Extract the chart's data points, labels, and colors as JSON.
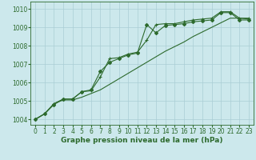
{
  "xlabel": "Graphe pression niveau de la mer (hPa)",
  "bg_color": "#cce8ec",
  "grid_color": "#aacdd4",
  "line_color": "#2d6a2d",
  "ylim": [
    1003.7,
    1010.4
  ],
  "xlim": [
    -0.5,
    23.5
  ],
  "yticks": [
    1004,
    1005,
    1006,
    1007,
    1008,
    1009,
    1010
  ],
  "xticks": [
    0,
    1,
    2,
    3,
    4,
    5,
    6,
    7,
    8,
    9,
    10,
    11,
    12,
    13,
    14,
    15,
    16,
    17,
    18,
    19,
    20,
    21,
    22,
    23
  ],
  "line1": [
    1004.0,
    1004.3,
    1004.8,
    1005.1,
    1005.1,
    1005.5,
    1005.6,
    1006.6,
    1007.1,
    1007.3,
    1007.5,
    1007.6,
    1009.15,
    1008.7,
    1009.1,
    1009.15,
    1009.2,
    1009.3,
    1009.35,
    1009.4,
    1009.8,
    1009.8,
    1009.4,
    1009.4
  ],
  "line2": [
    1004.0,
    1004.3,
    1004.85,
    1005.1,
    1005.1,
    1005.5,
    1005.55,
    1006.3,
    1007.3,
    1007.35,
    1007.55,
    1007.65,
    1008.3,
    1009.15,
    1009.2,
    1009.2,
    1009.3,
    1009.4,
    1009.45,
    1009.5,
    1009.85,
    1009.85,
    1009.5,
    1009.5
  ],
  "line3": [
    1004.0,
    1004.3,
    1004.85,
    1005.05,
    1005.05,
    1005.2,
    1005.4,
    1005.6,
    1005.9,
    1006.2,
    1006.5,
    1006.8,
    1007.1,
    1007.4,
    1007.7,
    1007.95,
    1008.2,
    1008.5,
    1008.75,
    1009.0,
    1009.25,
    1009.5,
    1009.5,
    1009.45
  ],
  "xlabel_fontsize": 6.5,
  "tick_fontsize": 5.5
}
